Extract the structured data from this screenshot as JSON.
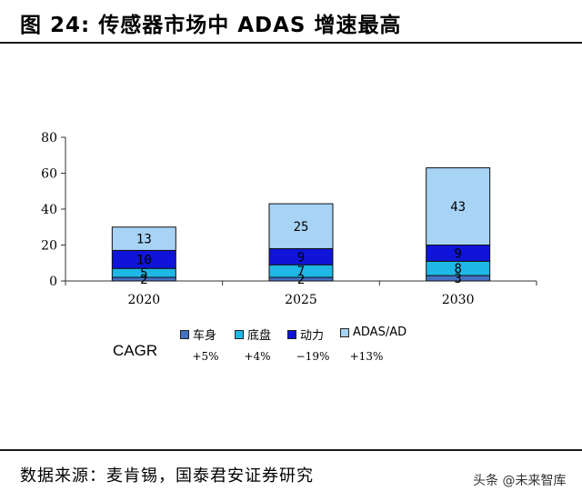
{
  "figure_title": "图 24:   传感器市场中 ADAS 增速最高",
  "chart_data": {
    "type": "bar",
    "stacked": true,
    "categories": [
      "2020",
      "2025",
      "2030"
    ],
    "ylim": [
      0,
      80
    ],
    "yticks": [
      0,
      20,
      40,
      60,
      80
    ],
    "series": [
      {
        "name": "车身",
        "color": "#4472c4",
        "values": [
          2,
          2,
          3
        ],
        "labels": [
          "2",
          "2",
          "3"
        ],
        "label_color": "#000000"
      },
      {
        "name": "底盘",
        "color": "#1fb7e6",
        "values": [
          5,
          7,
          8
        ],
        "labels": [
          "5",
          "7",
          "8"
        ],
        "label_color": "#000000"
      },
      {
        "name": "动力",
        "color": "#0f14d8",
        "values": [
          10,
          9,
          9
        ],
        "labels": [
          "10",
          "9",
          "9"
        ],
        "label_color": "#000000"
      },
      {
        "name": "ADAS/AD",
        "color": "#a7d3f5",
        "values": [
          13,
          25,
          43
        ],
        "labels": [
          "13",
          "25",
          "43"
        ],
        "label_color": "#000000"
      }
    ],
    "cagr_label": "CAGR",
    "cagr": [
      "+5%",
      "+4%",
      "−19%",
      "+13%"
    ]
  },
  "source": "数据来源：麦肯锡，国泰君安证券研究",
  "watermark": "头条 @未来智库"
}
